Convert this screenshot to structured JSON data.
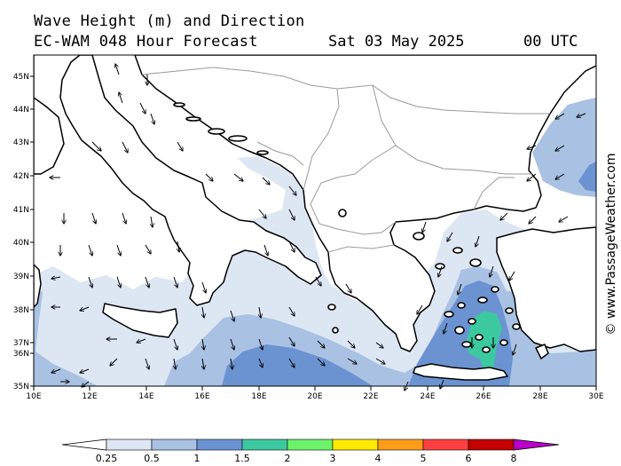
{
  "header": {
    "title": "Wave Height (m) and Direction",
    "model": "EC-WAM 048 Hour Forecast",
    "date": "Sat 03 May 2025",
    "time": "00 UTC"
  },
  "watermark": "© www.PassageWeather.com",
  "axes": {
    "lat_labels": [
      "45N",
      "44N",
      "43N",
      "42N",
      "41N",
      "40N",
      "39N",
      "38N",
      "37N",
      "36N",
      "35N"
    ],
    "lon_labels": [
      "10E",
      "12E",
      "14E",
      "16E",
      "18E",
      "20E",
      "22E",
      "24E",
      "26E",
      "28E",
      "30E"
    ]
  },
  "legend": {
    "ticks": [
      "0.25",
      "0.5",
      "1",
      "1.5",
      "2",
      "3",
      "4",
      "5",
      "6",
      "8"
    ],
    "colors": [
      "#dde6f3",
      "#a9c1e3",
      "#6b93d2",
      "#3cc9a0",
      "#6df26c",
      "#ffea00",
      "#ff9d1a",
      "#ff4040",
      "#c40000",
      "#b800c8"
    ]
  },
  "map": {
    "extent": {
      "lon_min": 10,
      "lon_max": 30,
      "lat_min": 35,
      "lat_max": 45.5
    },
    "palette": {
      "land": "#ffffff",
      "sea_low": "#ffffff",
      "sea_025": "#dde6f3",
      "sea_05": "#a9c1e3",
      "sea_1": "#6b93d2",
      "sea_15": "#3cc9a0",
      "coast": "#000000",
      "border": "#9a9a9a"
    }
  }
}
